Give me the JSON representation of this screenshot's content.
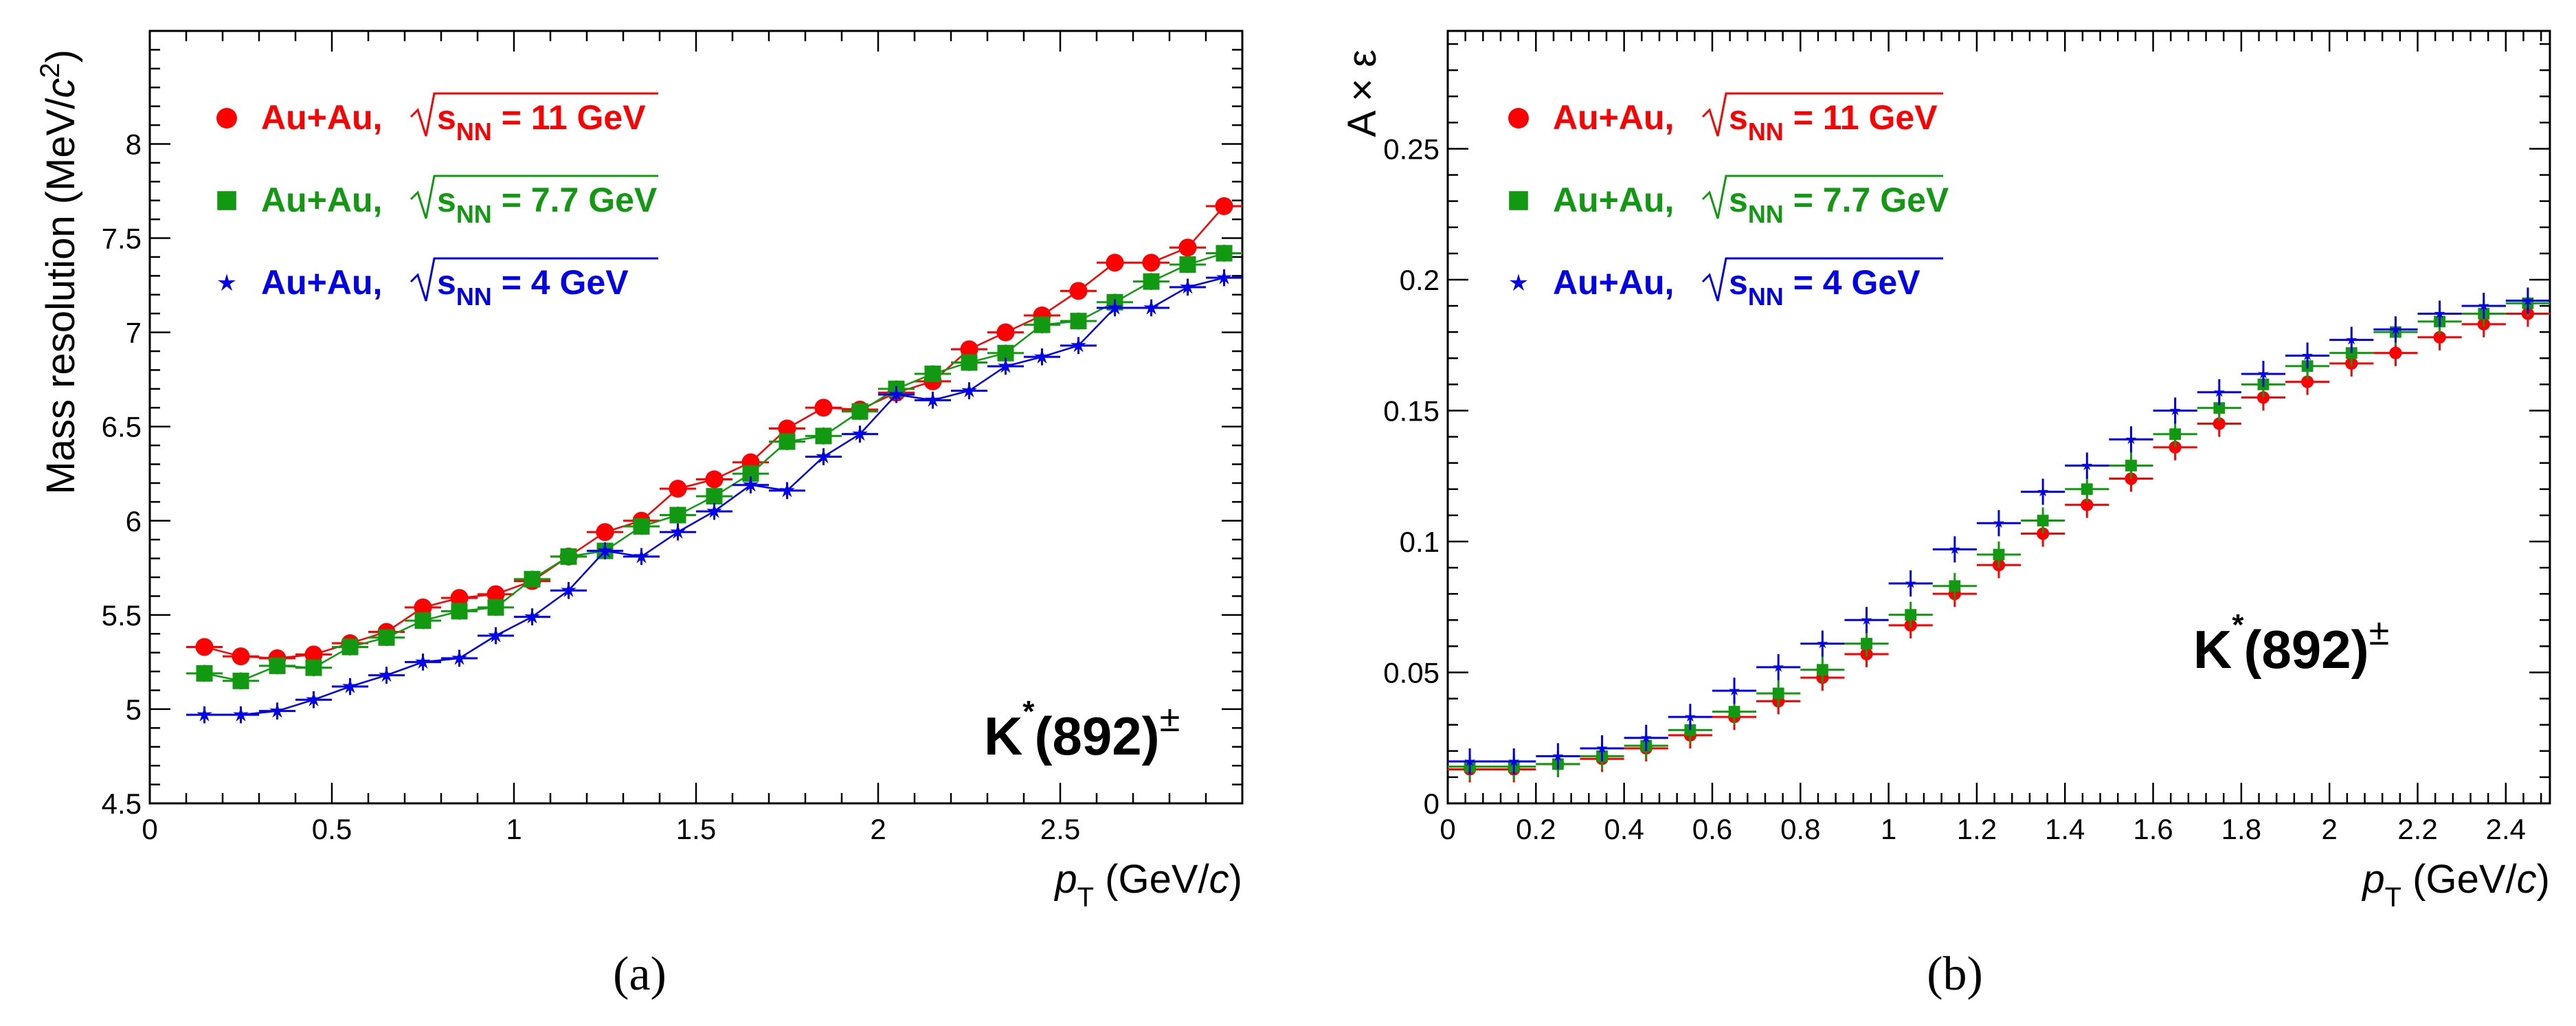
{
  "figure": {
    "panel_a_caption": "(a)",
    "panel_b_caption": "(b)"
  },
  "chart_data": [
    {
      "type": "line",
      "panel": "a",
      "ylabel": "Mass resolution (MeV/c²)",
      "xlabel": "p_T (GeV/c)",
      "annotation": "K*(892)±",
      "xlim": [
        0,
        3.0
      ],
      "ylim": [
        4.5,
        8.6
      ],
      "xticks": [
        "0",
        "0.5",
        "1",
        "1.5",
        "2",
        "2.5"
      ],
      "xtick_values": [
        0,
        0.5,
        1,
        1.5,
        2,
        2.5
      ],
      "yticks": [
        "4.5",
        "5",
        "5.5",
        "6",
        "6.5",
        "7",
        "7.5",
        "8"
      ],
      "ytick_values": [
        4.5,
        5,
        5.5,
        6,
        6.5,
        7,
        7.5,
        8
      ],
      "x": [
        0.15,
        0.25,
        0.35,
        0.45,
        0.55,
        0.65,
        0.75,
        0.85,
        0.95,
        1.05,
        1.15,
        1.25,
        1.35,
        1.45,
        1.55,
        1.65,
        1.75,
        1.85,
        1.95,
        2.05,
        2.15,
        2.25,
        2.35,
        2.45,
        2.55,
        2.65,
        2.75,
        2.85,
        2.95
      ],
      "series": [
        {
          "name": "11 GeV",
          "legend_prefix": "Au+Au,",
          "legend_energy": "= 11 GeV",
          "color": "#ff0000",
          "marker": "circle",
          "values": [
            5.33,
            5.28,
            5.27,
            5.29,
            5.35,
            5.41,
            5.54,
            5.59,
            5.61,
            5.68,
            5.81,
            5.94,
            6.0,
            6.17,
            6.22,
            6.31,
            6.49,
            6.6,
            6.59,
            6.68,
            6.74,
            6.91,
            7.0,
            7.09,
            7.22,
            7.37,
            7.37,
            7.45,
            7.67
          ]
        },
        {
          "name": "7.7 GeV",
          "legend_prefix": "Au+Au,",
          "legend_energy": "= 7.7 GeV",
          "color": "#119911",
          "marker": "square",
          "values": [
            5.19,
            5.15,
            5.23,
            5.22,
            5.33,
            5.38,
            5.47,
            5.52,
            5.54,
            5.69,
            5.81,
            5.84,
            5.97,
            6.03,
            6.13,
            6.25,
            6.42,
            6.45,
            6.58,
            6.7,
            6.78,
            6.84,
            6.89,
            7.04,
            7.06,
            7.16,
            7.27,
            7.36,
            7.42
          ]
        },
        {
          "name": "4 GeV",
          "legend_prefix": "Au+Au,",
          "legend_energy": "= 4 GeV",
          "color": "#0000ee",
          "marker": "star",
          "values": [
            4.97,
            4.97,
            4.99,
            5.05,
            5.12,
            5.18,
            5.25,
            5.27,
            5.39,
            5.49,
            5.63,
            5.84,
            5.81,
            5.94,
            6.05,
            6.19,
            6.16,
            6.34,
            6.46,
            6.67,
            6.64,
            6.69,
            6.82,
            6.87,
            6.93,
            7.13,
            7.13,
            7.24,
            7.29
          ]
        }
      ]
    },
    {
      "type": "scatter",
      "panel": "b",
      "ylabel": "A × ε",
      "xlabel": "p_T (GeV/c)",
      "annotation": "K*(892)±",
      "xlim": [
        0,
        2.5
      ],
      "ylim": [
        0,
        0.295
      ],
      "xticks": [
        "0",
        "0.2",
        "0.4",
        "0.6",
        "0.8",
        "1",
        "1.2",
        "1.4",
        "1.6",
        "1.8",
        "2",
        "2.2",
        "2.4"
      ],
      "xtick_values": [
        0,
        0.2,
        0.4,
        0.6,
        0.8,
        1.0,
        1.2,
        1.4,
        1.6,
        1.8,
        2.0,
        2.2,
        2.4
      ],
      "yticks": [
        "0",
        "0.05",
        "0.1",
        "0.15",
        "0.2",
        "0.25"
      ],
      "ytick_values": [
        0,
        0.05,
        0.1,
        0.15,
        0.2,
        0.25
      ],
      "x": [
        0.05,
        0.15,
        0.25,
        0.35,
        0.45,
        0.55,
        0.65,
        0.75,
        0.85,
        0.95,
        1.05,
        1.15,
        1.25,
        1.35,
        1.45,
        1.55,
        1.65,
        1.75,
        1.85,
        1.95,
        2.05,
        2.15,
        2.25,
        2.35,
        2.45
      ],
      "series": [
        {
          "name": "11 GeV",
          "legend_prefix": "Au+Au,",
          "legend_energy": "= 11 GeV",
          "color": "#ff0000",
          "marker": "circle",
          "values": [
            0.013,
            0.013,
            0.015,
            0.017,
            0.021,
            0.026,
            0.033,
            0.039,
            0.048,
            0.057,
            0.068,
            0.08,
            0.091,
            0.103,
            0.114,
            0.124,
            0.136,
            0.145,
            0.155,
            0.161,
            0.168,
            0.172,
            0.178,
            0.183,
            0.187
          ]
        },
        {
          "name": "7.7 GeV",
          "legend_prefix": "Au+Au,",
          "legend_energy": "= 7.7 GeV",
          "color": "#119911",
          "marker": "square",
          "values": [
            0.014,
            0.014,
            0.015,
            0.018,
            0.022,
            0.028,
            0.035,
            0.042,
            0.051,
            0.061,
            0.072,
            0.083,
            0.095,
            0.108,
            0.12,
            0.129,
            0.141,
            0.151,
            0.16,
            0.167,
            0.172,
            0.18,
            0.184,
            0.187,
            0.191
          ]
        },
        {
          "name": "4 GeV",
          "legend_prefix": "Au+Au,",
          "legend_energy": "= 4 GeV",
          "color": "#0000ee",
          "marker": "star",
          "values": [
            0.016,
            0.016,
            0.018,
            0.021,
            0.025,
            0.033,
            0.043,
            0.052,
            0.061,
            0.07,
            0.084,
            0.097,
            0.107,
            0.119,
            0.129,
            0.139,
            0.15,
            0.157,
            0.164,
            0.171,
            0.177,
            0.181,
            0.187,
            0.19,
            0.192
          ]
        }
      ]
    }
  ]
}
